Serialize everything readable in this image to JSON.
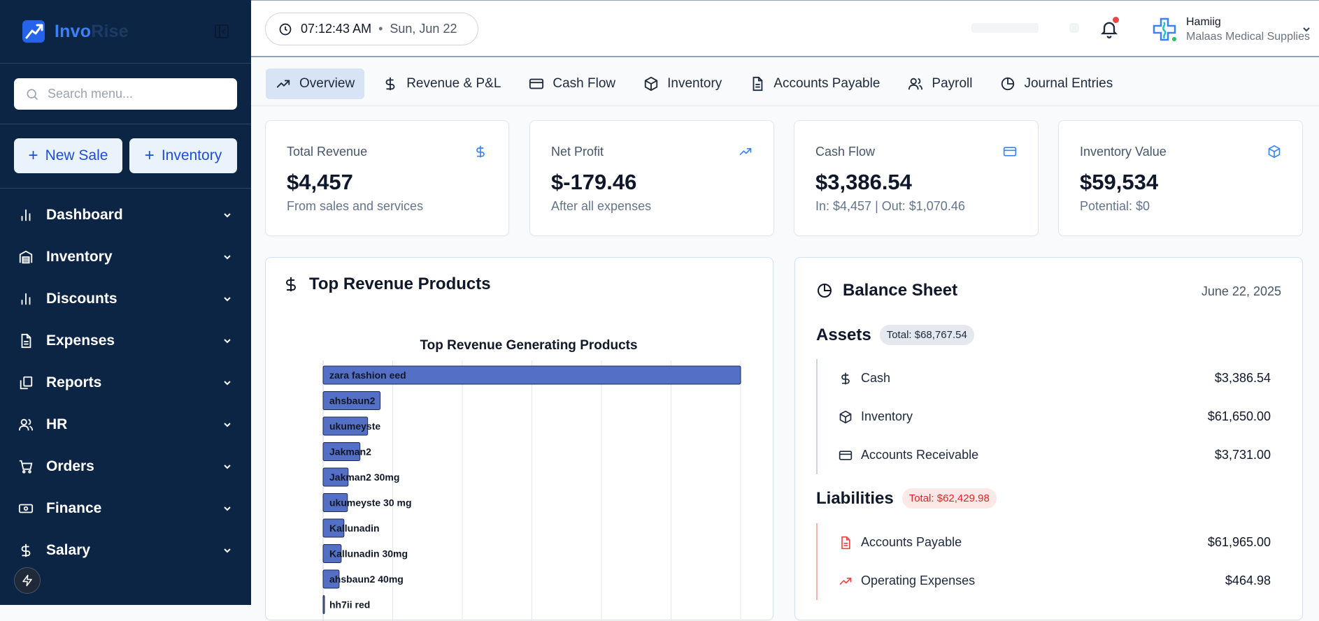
{
  "brand": {
    "part1": "Invo",
    "part2": "Rise"
  },
  "search": {
    "placeholder": "Search menu..."
  },
  "quick_actions": [
    {
      "label": "New Sale"
    },
    {
      "label": "Inventory"
    }
  ],
  "nav": [
    {
      "label": "Dashboard",
      "icon": "bar-chart-icon"
    },
    {
      "label": "Inventory",
      "icon": "warehouse-icon"
    },
    {
      "label": "Discounts",
      "icon": "bar-chart-icon"
    },
    {
      "label": "Expenses",
      "icon": "file-text-icon"
    },
    {
      "label": "Reports",
      "icon": "copy-icon"
    },
    {
      "label": "HR",
      "icon": "users-icon"
    },
    {
      "label": "Orders",
      "icon": "cart-icon"
    },
    {
      "label": "Finance",
      "icon": "banknote-icon"
    },
    {
      "label": "Salary",
      "icon": "dollar-icon"
    }
  ],
  "header": {
    "time": "07:12:43 AM",
    "date": "Sun, Jun 22",
    "user_name": "Hamiig",
    "company": "Malaas Medical Supplies"
  },
  "tabs": [
    {
      "label": "Overview",
      "icon": "trending-up-icon",
      "active": true
    },
    {
      "label": "Revenue & P&L",
      "icon": "dollar-icon"
    },
    {
      "label": "Cash Flow",
      "icon": "credit-card-icon"
    },
    {
      "label": "Inventory",
      "icon": "box-icon"
    },
    {
      "label": "Accounts Payable",
      "icon": "file-text-icon"
    },
    {
      "label": "Payroll",
      "icon": "users-icon"
    },
    {
      "label": "Journal Entries",
      "icon": "pie-chart-icon"
    }
  ],
  "kpis": [
    {
      "label": "Total Revenue",
      "value": "$4,457",
      "sub": "From sales and services",
      "icon": "dollar-icon"
    },
    {
      "label": "Net Profit",
      "value": "$-179.46",
      "sub": "After all expenses",
      "icon": "trending-up-icon"
    },
    {
      "label": "Cash Flow",
      "value": "$3,386.54",
      "sub": "In: $4,457 | Out: $1,070.46",
      "icon": "credit-card-icon"
    },
    {
      "label": "Inventory Value",
      "value": "$59,534",
      "sub": "Potential: $0",
      "icon": "box-icon"
    }
  ],
  "top_products": {
    "title": "Top Revenue Products"
  },
  "chart_data": {
    "type": "bar",
    "orientation": "horizontal",
    "title": "Top Revenue Generating Products",
    "categories": [
      "zara fashion eed",
      "ahsbaun2",
      "ukumeyste",
      "Jakman2",
      "Jakman2 30mg",
      "ukumeyste 30 mg",
      "Kallunadin",
      "Kallunadin 30mg",
      "ahsbaun2 40mg",
      "hh7ii red"
    ],
    "values": [
      3000,
      410,
      320,
      265,
      180,
      175,
      150,
      130,
      115,
      10
    ],
    "xlim": [
      0,
      3000
    ],
    "grid": true,
    "bar_color": "#5470c6"
  },
  "balance_sheet": {
    "title": "Balance Sheet",
    "date": "June 22, 2025",
    "assets": {
      "heading": "Assets",
      "total": "Total: $68,767.54",
      "items": [
        {
          "name": "Cash",
          "amount": "$3,386.54",
          "icon": "dollar-icon"
        },
        {
          "name": "Inventory",
          "amount": "$61,650.00",
          "icon": "box-icon"
        },
        {
          "name": "Accounts Receivable",
          "amount": "$3,731.00",
          "icon": "credit-card-icon"
        }
      ]
    },
    "liabilities": {
      "heading": "Liabilities",
      "total": "Total: $62,429.98",
      "items": [
        {
          "name": "Accounts Payable",
          "amount": "$61,965.00",
          "icon": "file-text-icon"
        },
        {
          "name": "Operating Expenses",
          "amount": "$464.98",
          "icon": "trending-up-icon"
        }
      ]
    }
  },
  "colors": {
    "sidebar": "#0d2545",
    "accent": "#3b82f6",
    "danger": "#ef4444",
    "success": "#22c55e"
  }
}
